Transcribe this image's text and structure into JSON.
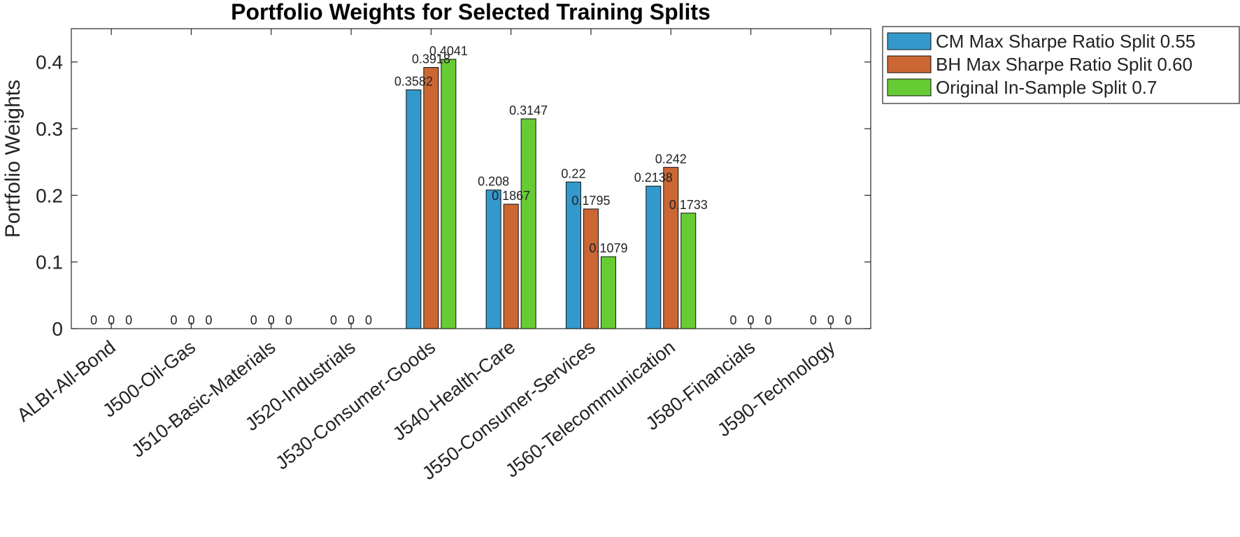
{
  "chart_data": {
    "type": "bar",
    "title": "Portfolio Weights for Selected Training Splits",
    "xlabel": "",
    "ylabel": "Portfolio Weights",
    "ylim": [
      0,
      0.45
    ],
    "yticks": [
      0,
      0.1,
      0.2,
      0.3,
      0.4
    ],
    "ytick_labels": [
      "0",
      "0.1",
      "0.2",
      "0.3",
      "0.4"
    ],
    "grid": false,
    "legend_position": "outside-top-right",
    "categories": [
      "ALBI-All-Bond",
      "J500-Oil-Gas",
      "J510-Basic-Materials",
      "J520-Industrials",
      "J530-Consumer-Goods",
      "J540-Health-Care",
      "J550-Consumer-Services",
      "J560-Telecommunication",
      "J580-Financials",
      "J590-Technology"
    ],
    "series": [
      {
        "name": "CM Max Sharpe Ratio Split 0.55",
        "color": "#3399cc",
        "values": [
          0,
          0,
          0,
          0,
          0.3582,
          0.208,
          0.22,
          0.2138,
          0,
          0
        ],
        "labels": [
          "0",
          "0",
          "0",
          "0",
          "0.3582",
          "0.208",
          "0.22",
          "0.2138",
          "0",
          "0"
        ]
      },
      {
        "name": "BH Max Sharpe Ratio Split 0.60",
        "color": "#cc6633",
        "values": [
          0,
          0,
          0,
          0,
          0.3918,
          0.1867,
          0.1795,
          0.242,
          0,
          0
        ],
        "labels": [
          "0",
          "0",
          "0",
          "0",
          "0.3918",
          "0.1867",
          "0.1795",
          "0.242",
          "0",
          "0"
        ]
      },
      {
        "name": "Original In-Sample Split 0.7",
        "color": "#66cc33",
        "values": [
          0,
          0,
          0,
          0,
          0.4041,
          0.3147,
          0.1079,
          0.1733,
          0,
          0
        ],
        "labels": [
          "0",
          "0",
          "0",
          "0",
          "0.4041",
          "0.3147",
          "0.1079",
          "0.1733",
          "0",
          "0"
        ]
      }
    ]
  }
}
